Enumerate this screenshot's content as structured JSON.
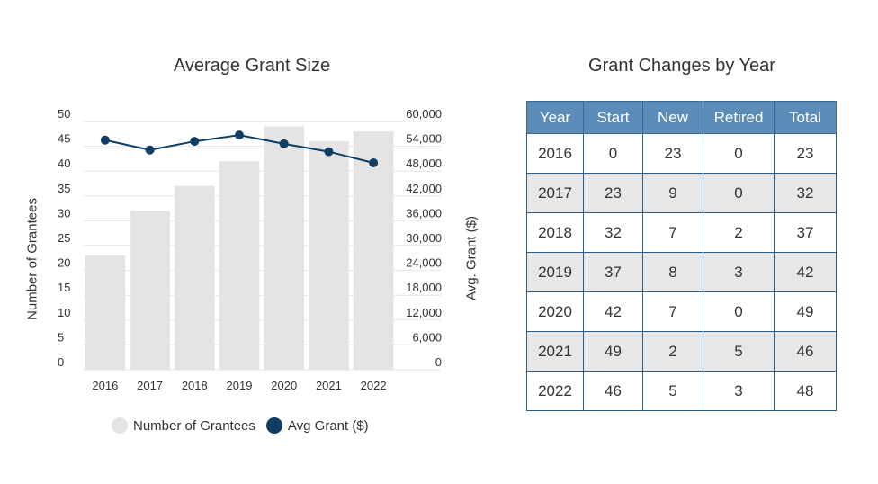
{
  "chart_data": {
    "type": "bar",
    "title": "Average Grant Size",
    "categories": [
      "2016",
      "2017",
      "2018",
      "2019",
      "2020",
      "2021",
      "2022"
    ],
    "ylabel": "Number of Grantees",
    "y2label": "Avg. Grant ($)",
    "ylim": [
      0,
      50
    ],
    "y2lim": [
      0,
      60000
    ],
    "yticks": [
      "0",
      "5",
      "10",
      "15",
      "20",
      "25",
      "30",
      "35",
      "40",
      "45",
      "50"
    ],
    "y2ticks": [
      "0",
      "6,000",
      "12,000",
      "18,000",
      "24,000",
      "30,000",
      "36,000",
      "42,000",
      "48,000",
      "54,000",
      "60,000"
    ],
    "grid": true,
    "legend_position": "bottom",
    "series": [
      {
        "name": "Number of Grantees",
        "type": "bar",
        "axis": "left",
        "color": "#e4e4e4",
        "values": [
          23,
          32,
          37,
          42,
          49,
          46,
          48
        ]
      },
      {
        "name": "Avg Grant ($)",
        "type": "line",
        "axis": "right",
        "color": "#0f3d63",
        "values": [
          55500,
          53100,
          55200,
          56700,
          54600,
          52700,
          50000
        ]
      }
    ]
  },
  "table": {
    "title": "Grant Changes by Year",
    "headers": [
      "Year",
      "Start",
      "New",
      "Retired",
      "Total"
    ],
    "rows": [
      [
        "2016",
        "0",
        "23",
        "0",
        "23"
      ],
      [
        "2017",
        "23",
        "9",
        "0",
        "32"
      ],
      [
        "2018",
        "32",
        "7",
        "2",
        "37"
      ],
      [
        "2019",
        "37",
        "8",
        "3",
        "42"
      ],
      [
        "2020",
        "42",
        "7",
        "0",
        "49"
      ],
      [
        "2021",
        "49",
        "2",
        "5",
        "46"
      ],
      [
        "2022",
        "46",
        "5",
        "3",
        "48"
      ]
    ]
  }
}
